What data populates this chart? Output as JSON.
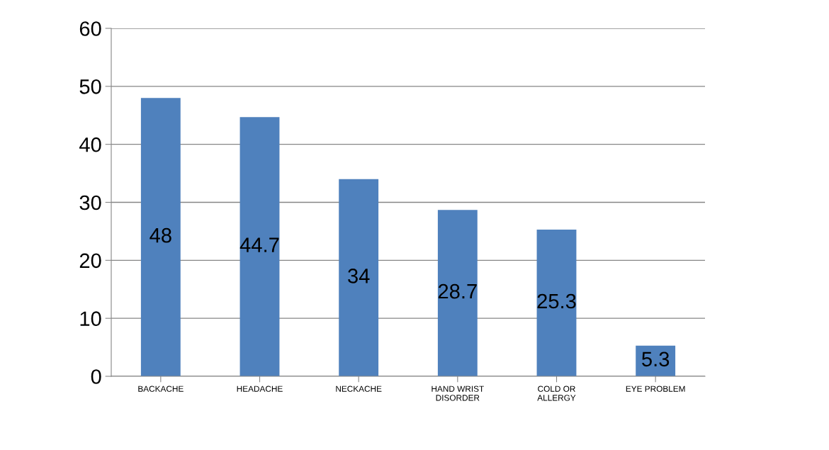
{
  "chart_data": {
    "type": "bar",
    "categories": [
      "BACKACHE",
      "HEADACHE",
      "NECKACHE",
      "HAND WRIST\nDISORDER",
      "COLD OR\nALLERGY",
      "EYE PROBLEM"
    ],
    "values": [
      48,
      44.7,
      34,
      28.7,
      25.3,
      5.3
    ],
    "color": "#4f81bd",
    "ylim": [
      0,
      60
    ],
    "yticks": [
      0,
      10,
      20,
      30,
      40,
      50,
      60
    ],
    "grid": "y",
    "data_labels": true
  }
}
